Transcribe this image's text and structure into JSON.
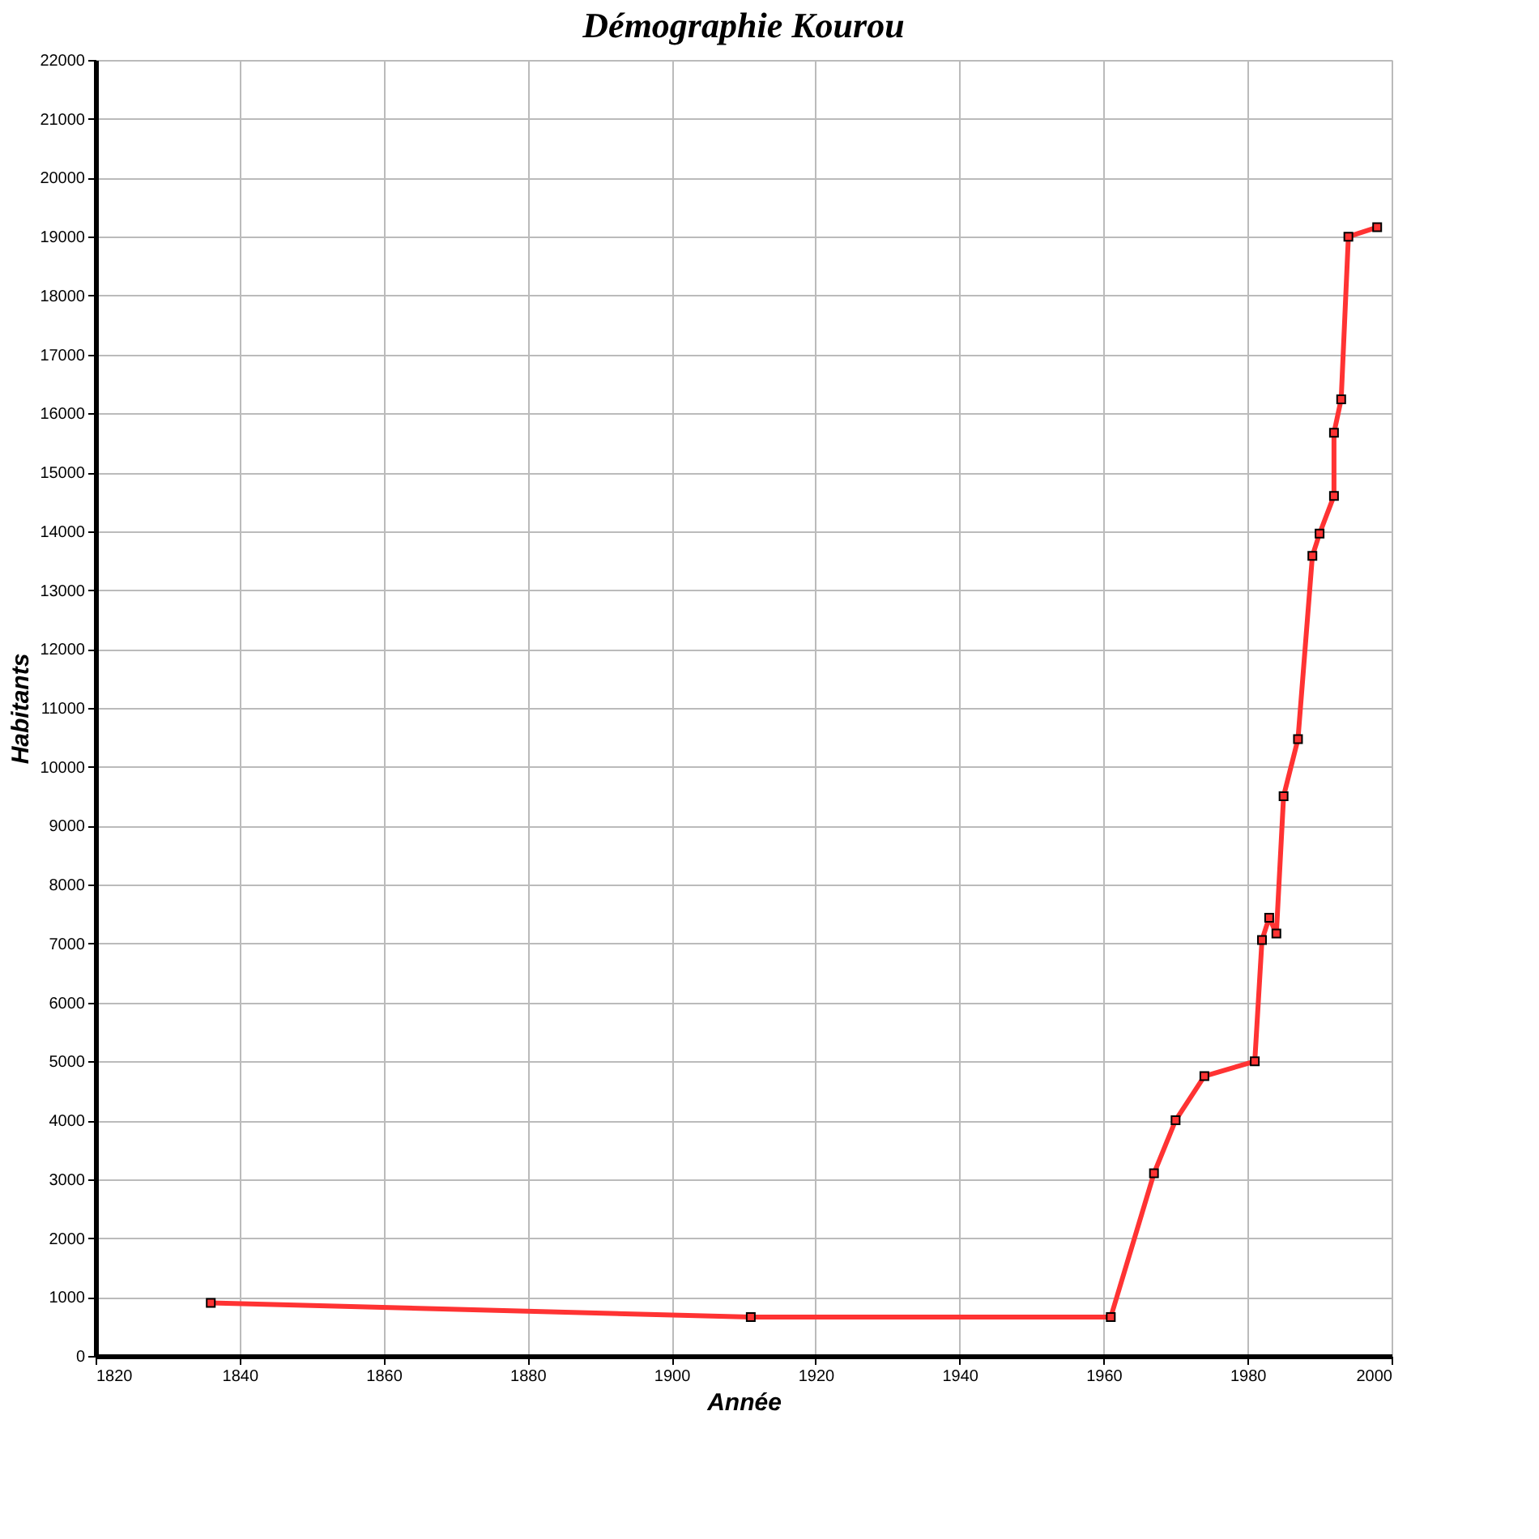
{
  "chart_data": {
    "type": "line",
    "title": "Démographie Kourou",
    "xlabel": "Année",
    "ylabel": "Habitants",
    "x": [
      1836,
      1911,
      1961,
      1967,
      1970,
      1974,
      1981,
      1982,
      1983,
      1984,
      1985,
      1987,
      1989,
      1990,
      1992,
      1992,
      1993,
      1994,
      1998
    ],
    "series": [
      {
        "color": "#ff3333",
        "values": [
          900,
          660,
          660,
          3100,
          4000,
          4750,
          5000,
          7060,
          7440,
          7170,
          9500,
          10470,
          13580,
          13960,
          14600,
          15670,
          16240,
          19000,
          19160
        ]
      }
    ],
    "xlim": [
      1820,
      2000
    ],
    "xticks": [
      1820,
      1840,
      1860,
      1880,
      1900,
      1920,
      1940,
      1960,
      1980,
      2000
    ],
    "ylim": [
      0,
      22000
    ],
    "yticks": [
      0,
      1000,
      2000,
      3000,
      4000,
      5000,
      6000,
      7000,
      8000,
      9000,
      10000,
      11000,
      12000,
      13000,
      14000,
      15000,
      16000,
      17000,
      18000,
      19000,
      20000,
      21000,
      22000
    ],
    "grid": true,
    "marker": "square",
    "line_style": "solid"
  }
}
